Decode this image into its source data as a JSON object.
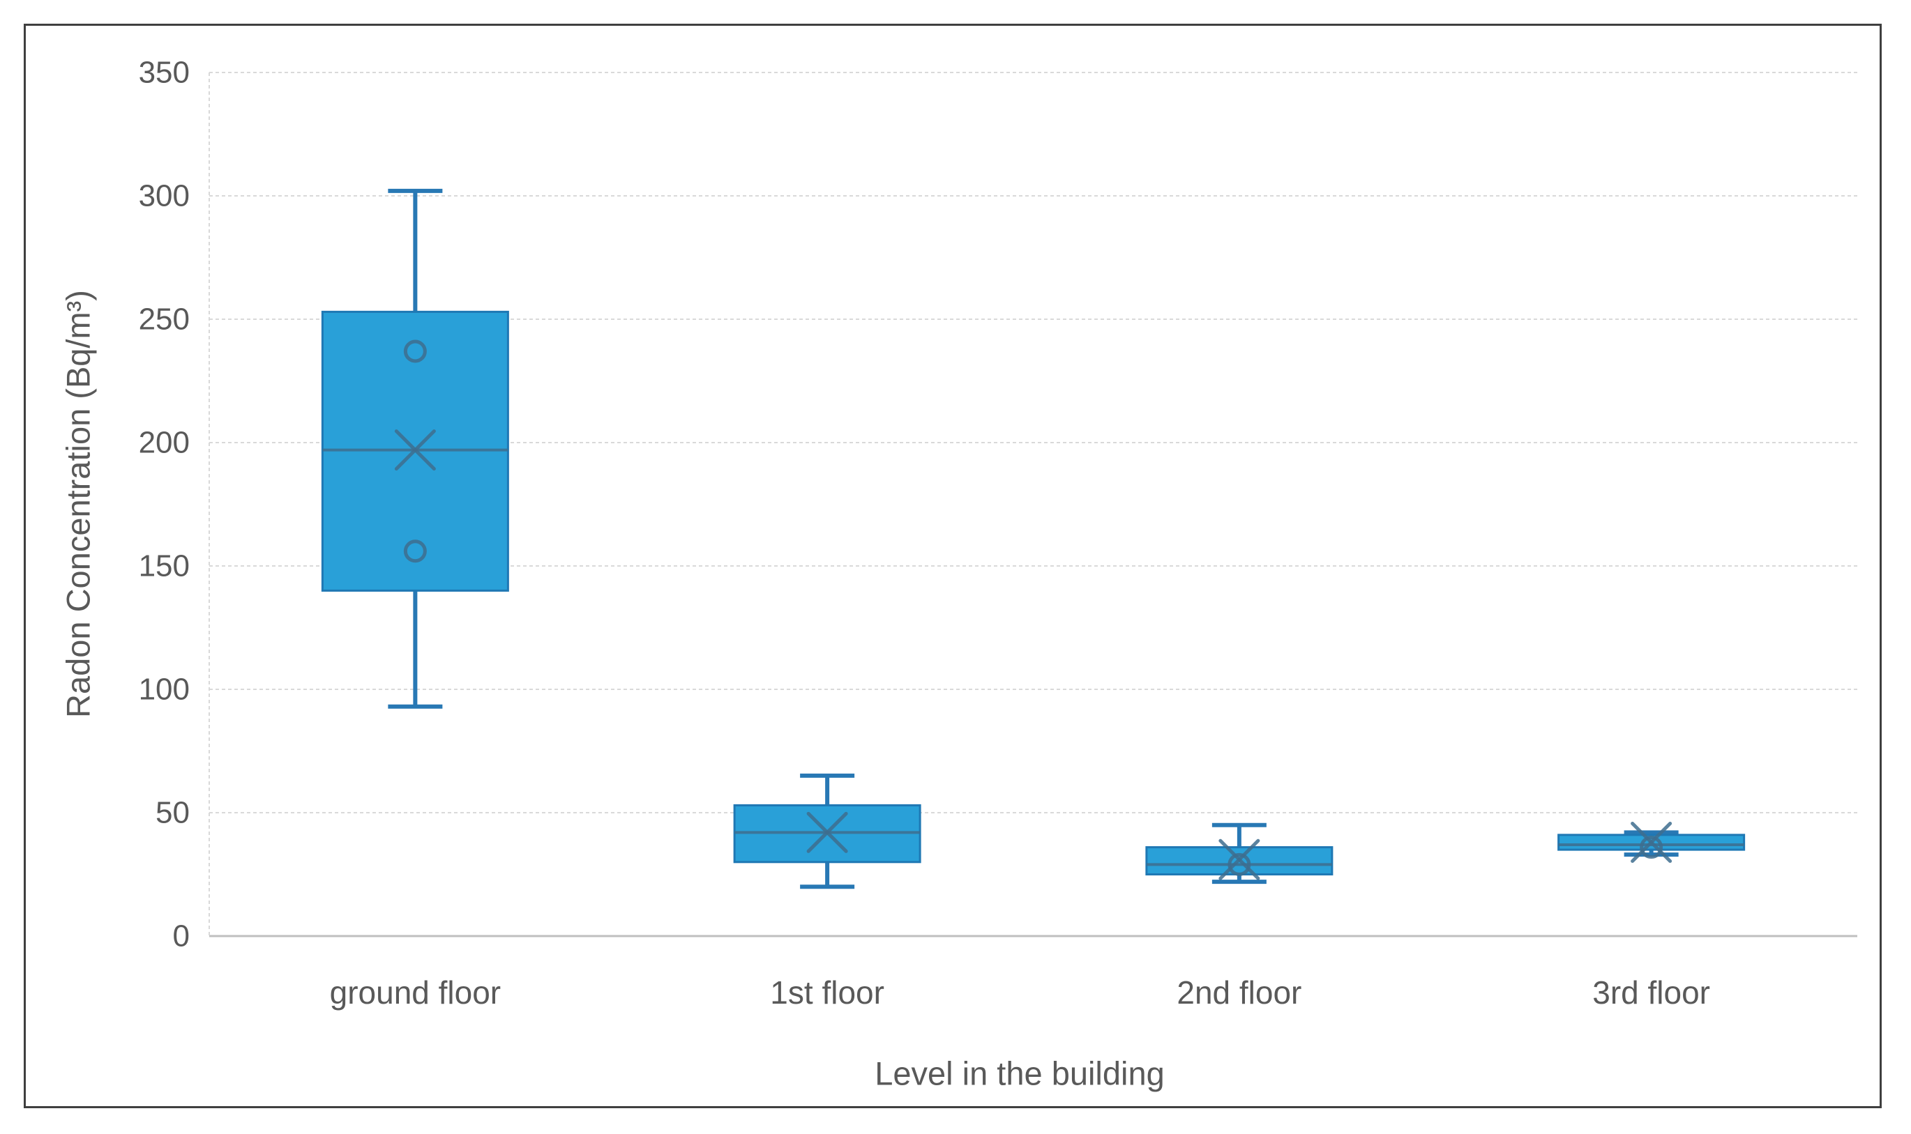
{
  "figure": {
    "background": "#ffffff",
    "border_color": "#3f3f3f"
  },
  "chart_data": {
    "type": "boxplot",
    "title": "",
    "xlabel": "Level in the building",
    "ylabel": "Radon Concentration (Bq/m³)",
    "ylim": [
      0,
      350
    ],
    "yticks": [
      0,
      50,
      100,
      150,
      200,
      250,
      300,
      350
    ],
    "grid": "horizontal light-gray dashed gridlines every 50",
    "legend": "none",
    "categories": [
      "ground floor",
      "1st floor",
      "2nd floor",
      "3rd floor"
    ],
    "series": [
      {
        "category": "ground floor",
        "whisker_min": 93,
        "q1": 140,
        "median": 197,
        "mean": 197,
        "q3": 253,
        "whisker_max": 302,
        "inner_points": [
          237,
          156
        ]
      },
      {
        "category": "1st floor",
        "whisker_min": 20,
        "q1": 30,
        "median": 42,
        "mean": 42,
        "q3": 53,
        "whisker_max": 65,
        "inner_points": []
      },
      {
        "category": "2nd floor",
        "whisker_min": 22,
        "q1": 25,
        "median": 29,
        "mean": 31,
        "q3": 36,
        "whisker_max": 45,
        "inner_points": [
          29
        ]
      },
      {
        "category": "3rd floor",
        "whisker_min": 33,
        "q1": 35,
        "median": 37,
        "mean": 38,
        "q3": 41,
        "whisker_max": 42,
        "inner_points": [
          36
        ]
      }
    ],
    "colors": {
      "box_fill": "#29A0D8",
      "box_border": "#1F78B4",
      "whisker": "#2878B4",
      "median_and_markers": "#3E6D8E",
      "gridline": "#D9D9D9",
      "axis_line": "#BFBFBF",
      "text": "#595959"
    }
  }
}
